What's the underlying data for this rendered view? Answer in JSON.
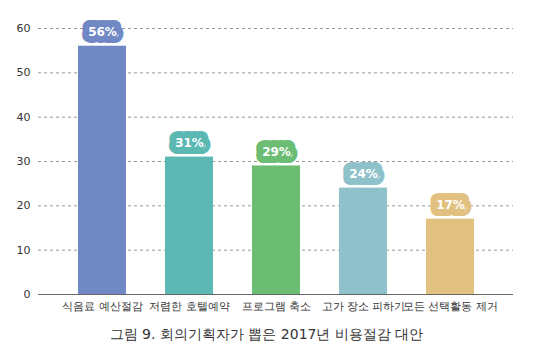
{
  "chart_data": {
    "type": "bar",
    "title": "그림 9. 회의기획자가 뽑은 2017년 비용절감 대안",
    "categories": [
      "식음료 예산절감",
      "저렴한 호텔예약",
      "프로그램 축소",
      "고가 장소 피하기",
      "모든 선택활동 제거"
    ],
    "values": [
      56,
      31,
      29,
      24,
      17
    ],
    "value_labels": [
      "56%",
      "31%",
      "29%",
      "24%",
      "17%"
    ],
    "colors": [
      "#7088c4",
      "#5cb8b3",
      "#6cbd74",
      "#8fc1cb",
      "#e2c07f"
    ],
    "ylim": [
      0,
      60
    ],
    "yticks": [
      0,
      10,
      20,
      30,
      40,
      50,
      60
    ],
    "grid": true,
    "data_labels": true
  }
}
